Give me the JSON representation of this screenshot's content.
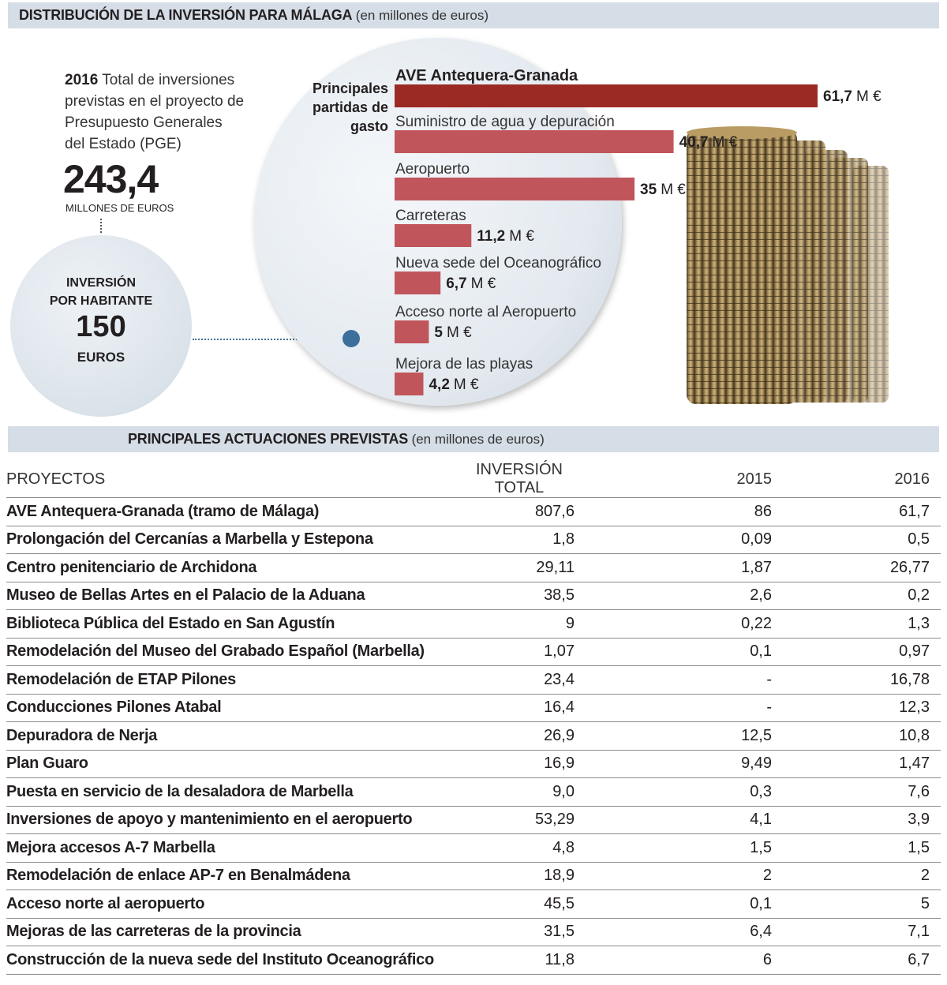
{
  "header": {
    "title": "DISTRIBUCIÓN DE LA INVERSIÓN PARA MÁLAGA",
    "unit": "(en millones de euros)"
  },
  "summary": {
    "year": "2016",
    "text_lines": [
      "Total de inversiones",
      "previstas en el proyecto de",
      "Presupuesto Generales",
      "del Estado (PGE)"
    ],
    "total": "243,4",
    "total_unit": "MILLONES DE EUROS",
    "per_capita_label_1": "INVERSIÓN",
    "per_capita_label_2": "POR HABITANTE",
    "per_capita_value": "150",
    "per_capita_unit": "EUROS"
  },
  "chart_data": {
    "type": "bar",
    "title": "Principales partidas de gasto",
    "categories": [
      "AVE Antequera-Granada",
      "Suministro de agua y depuración",
      "Aeropuerto",
      "Carreteras",
      "Nueva sede del Oceanográfico",
      "Acceso norte al Aeropuerto",
      "Mejora de las playas"
    ],
    "values": [
      61.7,
      40.7,
      35,
      11.2,
      6.7,
      5,
      4.2
    ],
    "value_labels": [
      "61,7",
      "40,7",
      "35",
      "11,2",
      "6,7",
      "5",
      "4,2"
    ],
    "value_unit": "M €",
    "colors": [
      "#9b2a25",
      "#c0565b",
      "#c0565b",
      "#c0565b",
      "#c0565b",
      "#c0565b",
      "#c0565b"
    ]
  },
  "table": {
    "title": "PRINCIPALES ACTUACIONES PREVISTAS",
    "unit": "(en millones de euros)",
    "columns": [
      "PROYECTOS",
      "INVERSIÓN TOTAL",
      "2015",
      "2016"
    ],
    "rows": [
      [
        "AVE Antequera-Granada (tramo de Málaga)",
        "807,6",
        "86",
        "61,7"
      ],
      [
        "Prolongación del Cercanías a Marbella y Estepona",
        "1,8",
        "0,09",
        "0,5"
      ],
      [
        "Centro penitenciario de Archidona",
        "29,11",
        "1,87",
        "26,77"
      ],
      [
        "Museo de Bellas Artes en el Palacio de la Aduana",
        "38,5",
        "2,6",
        "0,2"
      ],
      [
        "Biblioteca Pública del Estado en San Agustín",
        "9",
        "0,22",
        "1,3"
      ],
      [
        "Remodelación del Museo del Grabado Español (Marbella)",
        "1,07",
        "0,1",
        "0,97"
      ],
      [
        "Remodelación de ETAP Pilones",
        "23,4",
        "-",
        "16,78"
      ],
      [
        "Conducciones Pilones Atabal",
        "16,4",
        "-",
        "12,3"
      ],
      [
        "Depuradora de Nerja",
        "26,9",
        "12,5",
        "10,8"
      ],
      [
        "Plan Guaro",
        "16,9",
        "9,49",
        "1,47"
      ],
      [
        "Puesta en servicio de la desaladora de Marbella",
        "9,0",
        "0,3",
        "7,6"
      ],
      [
        "Inversiones de apoyo y mantenimiento en el aeropuerto",
        "53,29",
        "4,1",
        "3,9"
      ],
      [
        "Mejora accesos A-7 Marbella",
        "4,8",
        "1,5",
        "1,5"
      ],
      [
        "Remodelación de enlace AP-7 en Benalmádena",
        "18,9",
        "2",
        "2"
      ],
      [
        "Acceso norte al aeropuerto",
        "45,5",
        "0,1",
        "5"
      ],
      [
        "Mejoras de las carreteras de la provincia",
        "31,5",
        "6,4",
        "7,1"
      ],
      [
        "Construcción de la nueva sede del Instituto Oceanográfico",
        "11,8",
        "6",
        "6,7"
      ]
    ]
  }
}
